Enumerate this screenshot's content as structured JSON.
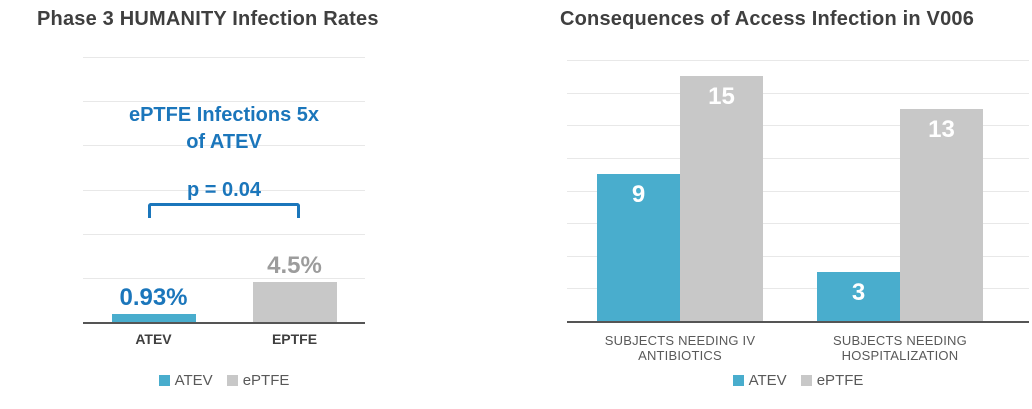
{
  "palette": {
    "atev_blue": "#49ADCD",
    "eptfe_gray": "#C8C8C8",
    "annotation_blue": "#1B76BB",
    "title_text": "#3F3F3F",
    "tick_text": "#595959",
    "axis_line": "#555555",
    "gridline": "#E8E8E8",
    "background": "#FFFFFF"
  },
  "chart_data": [
    {
      "type": "bar",
      "title": "Phase 3 HUMANITY Infection Rates",
      "categories": [
        "ATEV",
        "EPTFE"
      ],
      "values": [
        0.93,
        4.5
      ],
      "value_labels": [
        "0.93%",
        "4.5%"
      ],
      "bar_colors": [
        "#49ADCD",
        "#C8C8C8"
      ],
      "value_label_colors": [
        "#1B76BB",
        "#9C9C9C"
      ],
      "ylabel": "",
      "xlabel": "",
      "ylim": [
        0,
        30
      ],
      "gridline_step": 5,
      "grid": "horizontal",
      "legend_position": "bottom",
      "legend": [
        {
          "label": "ATEV",
          "color": "#49ADCD"
        },
        {
          "label": "ePTFE",
          "color": "#C8C8C8"
        }
      ],
      "annotation": {
        "line1": "ePTFE Infections 5x",
        "line2": "of ATEV",
        "p_value": "p = 0.04",
        "color": "#1B76BB"
      }
    },
    {
      "type": "bar",
      "title": "Consequences of Access Infection in V006",
      "categories": [
        [
          "SUBJECTS NEEDING IV",
          "ANTIBIOTICS"
        ],
        [
          "SUBJECTS NEEDING",
          "HOSPITALIZATION"
        ]
      ],
      "series": [
        {
          "name": "ATEV",
          "color": "#49ADCD",
          "values": [
            9,
            3
          ]
        },
        {
          "name": "ePTFE",
          "color": "#C8C8C8",
          "values": [
            15,
            13
          ]
        }
      ],
      "value_label_color": "#FFFFFF",
      "ylabel": "",
      "xlabel": "",
      "ylim": [
        0,
        16
      ],
      "gridline_step": 2,
      "grid": "horizontal",
      "legend_position": "bottom",
      "legend": [
        {
          "label": "ATEV",
          "color": "#49ADCD"
        },
        {
          "label": "ePTFE",
          "color": "#C8C8C8"
        }
      ]
    }
  ]
}
